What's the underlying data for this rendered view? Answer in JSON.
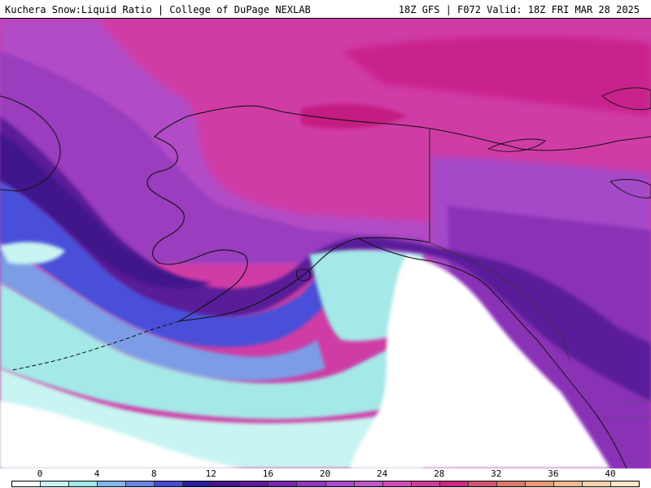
{
  "header": {
    "left": "Kuchera Snow:Liquid Ratio | College of DuPage NEXLAB",
    "right": "18Z GFS | F072 Valid: 18Z FRI MAR 28 2025"
  },
  "colorbar": {
    "tick_labels": [
      "0",
      "4",
      "8",
      "12",
      "16",
      "20",
      "24",
      "28",
      "32",
      "36",
      "40"
    ],
    "swatch_colors": [
      "#ffffff",
      "#c6f4f2",
      "#9ee8e8",
      "#84b4ec",
      "#6a82e2",
      "#4a4ad8",
      "#2e1ca0",
      "#48138e",
      "#62189e",
      "#7a26b0",
      "#9436c0",
      "#ae48cc",
      "#c054c8",
      "#d04cb2",
      "#d23c98",
      "#cc2a7c",
      "#d45470",
      "#dc7868",
      "#e89878",
      "#f2b892",
      "#f8d2ac",
      "#fde6c8"
    ]
  },
  "map": {
    "region": "Alaska and Northeast Pacific"
  }
}
